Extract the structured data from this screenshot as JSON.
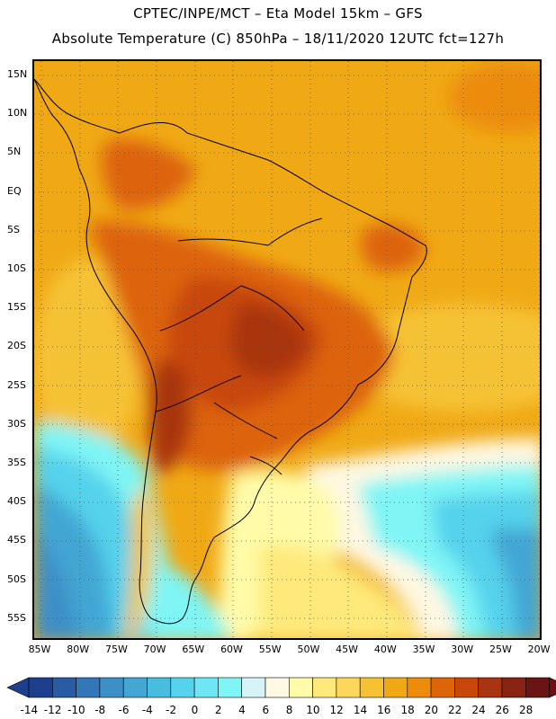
{
  "title": {
    "line1": "CPTEC/INPE/MCT –  Eta Model 15km – GFS",
    "line2": "Absolute Temperature (C) 850hPa – 18/11/2020 12UTC fct=127h"
  },
  "map": {
    "lat_labels": [
      "15N",
      "10N",
      "5N",
      "EQ",
      "5S",
      "10S",
      "15S",
      "20S",
      "25S",
      "30S",
      "35S",
      "40S",
      "45S",
      "50S",
      "55S"
    ],
    "lon_labels": [
      "85W",
      "80W",
      "75W",
      "70W",
      "65W",
      "60W",
      "55W",
      "50W",
      "45W",
      "40W",
      "35W",
      "30W",
      "25W",
      "20W"
    ],
    "variable": "Absolute Temperature (C)",
    "level": "850hPa"
  },
  "colorbar": {
    "labels": [
      "-14",
      "-12",
      "-10",
      "-8",
      "-6",
      "-4",
      "-2",
      "0",
      "2",
      "4",
      "6",
      "8",
      "10",
      "12",
      "14",
      "16",
      "18",
      "20",
      "22",
      "24",
      "26",
      "28"
    ],
    "colors": [
      "#1e3f8e",
      "#2a5ca5",
      "#3477b8",
      "#3c8fc7",
      "#43a6d3",
      "#49bde0",
      "#55d2ec",
      "#6ee6f5",
      "#7ff5f5",
      "#d6f3f7",
      "#fff8e2",
      "#fffba8",
      "#fee97a",
      "#fcd75b",
      "#f6c234",
      "#f0a915",
      "#ec8c0a",
      "#dd6408",
      "#c8470b",
      "#a93411",
      "#892414",
      "#6b1414"
    ],
    "extend_low_color": "#1e3f8e",
    "extend_high_color": "#6b0f10"
  }
}
